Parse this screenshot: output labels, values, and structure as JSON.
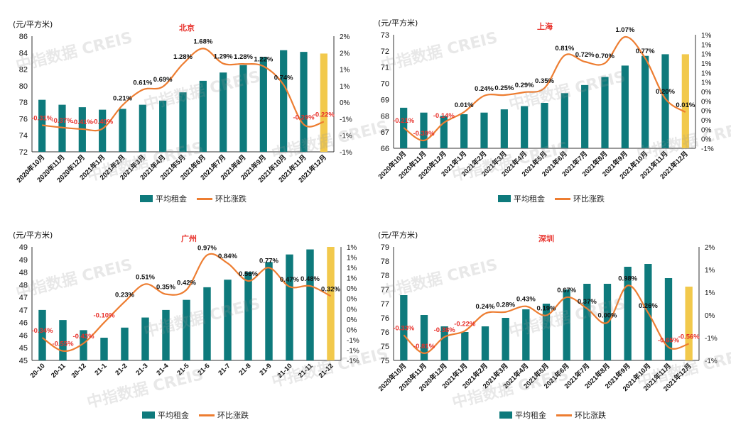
{
  "colors": {
    "bar": "#0e7a7c",
    "highlight": "#f2c94c",
    "line": "#ed7d31",
    "pct": "#e8312b",
    "title": "#e8312b"
  },
  "legend": {
    "bar": "平均租金",
    "line": "环比涨跌"
  },
  "watermark": "中指数据 CREIS",
  "chart_data": [
    {
      "type": "bar",
      "title": "北京",
      "ylabel": "(元/平方米)",
      "ylim": [
        72,
        86
      ],
      "yticks": [
        "72",
        "74",
        "76",
        "78",
        "80",
        "82",
        "84",
        "86"
      ],
      "y2ticks": [
        "-1%",
        "-1%",
        "-1%",
        "0%",
        "1%",
        "1%",
        "2%",
        "2%"
      ],
      "categories": [
        "2020年10月",
        "2020年11月",
        "2020年12月",
        "2021年1月",
        "2021年2月",
        "2021年3月",
        "2021年4月",
        "2021年5月",
        "2021年6月",
        "2021年7月",
        "2021年8月",
        "2021年9月",
        "2021年10月",
        "2021年11月",
        "2021年12月"
      ],
      "series": [
        {
          "name": "平均租金",
          "values": [
            78.3,
            77.7,
            77.4,
            77.1,
            77.2,
            77.7,
            78.2,
            79.2,
            80.6,
            81.6,
            82.5,
            83.5,
            84.3,
            84.1,
            83.9
          ]
        },
        {
          "name": "环比涨跌",
          "values": [
            -0.31,
            -0.37,
            -0.41,
            -0.4,
            0.21,
            0.61,
            0.69,
            1.28,
            1.68,
            1.29,
            1.28,
            1.22,
            0.74,
            -0.29,
            -0.22
          ]
        }
      ],
      "labels": [
        "-0.31%",
        "-0.37%",
        "-0.41%",
        "-0.40%",
        "0.21%",
        "0.61%",
        "0.69%",
        "1.28%",
        "1.68%",
        "1.29%",
        "1.28%",
        "1.22%",
        "0.74%",
        "-0.29%",
        "-0.22%"
      ]
    },
    {
      "type": "bar",
      "title": "上海",
      "ylabel": "(元/平方米)",
      "ylim": [
        66,
        73
      ],
      "yticks": [
        "66",
        "67",
        "68",
        "69",
        "70",
        "71",
        "72",
        "73"
      ],
      "y2ticks": [
        "-1%",
        "0%",
        "0%",
        "0%",
        "0%",
        "0%",
        "0%",
        "1%",
        "1%",
        "1%",
        "1%",
        "1%",
        "1%"
      ],
      "categories": [
        "2020年10月",
        "2020年11月",
        "2020年12月",
        "2021年1月",
        "2021年2月",
        "2021年3月",
        "2021年4月",
        "2021年5月",
        "2021年6月",
        "2021年7月",
        "2021年8月",
        "2021年9月",
        "2021年10月",
        "2021年11月",
        "2021年12月"
      ],
      "series": [
        {
          "name": "平均租金",
          "values": [
            68.5,
            68.2,
            68.0,
            68.1,
            68.2,
            68.4,
            68.6,
            68.8,
            69.4,
            69.9,
            70.4,
            71.1,
            71.7,
            71.8,
            71.8
          ]
        },
        {
          "name": "环比涨跌",
          "values": [
            -0.21,
            -0.39,
            -0.14,
            0.01,
            0.24,
            0.25,
            0.29,
            0.35,
            0.81,
            0.72,
            0.7,
            1.07,
            0.77,
            0.2,
            0.01
          ]
        }
      ],
      "labels": [
        "-0.21%",
        "-0.39%",
        "-0.14%",
        "0.01%",
        "0.24%",
        "0.25%",
        "0.29%",
        "0.35%",
        "0.81%",
        "0.72%",
        "0.70%",
        "1.07%",
        "0.77%",
        "0.20%",
        "0.01%"
      ]
    },
    {
      "type": "bar",
      "title": "广州",
      "ylabel": "(元/平方米)",
      "ylim": [
        45,
        49.5
      ],
      "yticks": [
        "45",
        "45",
        "46",
        "46",
        "47",
        "47",
        "48",
        "48",
        "49",
        "49"
      ],
      "y2ticks": [
        "-1%",
        "-1%",
        "-1%",
        "0%",
        "0%",
        "0%",
        "0%",
        "0%",
        "1%",
        "1%",
        "1%",
        "1%"
      ],
      "categories": [
        "20-10",
        "20-11",
        "20-12",
        "21-1",
        "21-2",
        "21-3",
        "21-4",
        "21-5",
        "21-6",
        "21-7",
        "21-8",
        "21-9",
        "21-10",
        "21-11",
        "21-12"
      ],
      "series": [
        {
          "name": "平均租金",
          "values": [
            47.0,
            46.6,
            46.2,
            45.9,
            46.3,
            46.7,
            47.0,
            47.4,
            47.9,
            48.2,
            48.5,
            48.9,
            49.2,
            49.4,
            49.5
          ]
        },
        {
          "name": "环比涨跌",
          "values": [
            -0.34,
            -0.55,
            -0.43,
            -0.1,
            0.23,
            0.51,
            0.35,
            0.42,
            0.97,
            0.84,
            0.56,
            0.77,
            0.47,
            0.48,
            0.32
          ]
        }
      ],
      "labels": [
        "-0.34%",
        "-0.55%",
        "-0.43%",
        "-0.10%",
        "0.23%",
        "0.51%",
        "0.35%",
        "0.42%",
        "0.97%",
        "0.84%",
        "0.56%",
        "0.77%",
        "0.47%",
        "0.48%",
        "0.32%"
      ]
    },
    {
      "type": "bar",
      "title": "深圳",
      "ylabel": "(元/平方米)",
      "ylim": [
        75,
        79
      ],
      "yticks": [
        "75",
        "75",
        "76",
        "76",
        "77",
        "77",
        "78",
        "78",
        "79"
      ],
      "y2ticks": [
        "-1%",
        "-1%",
        "0%",
        "1%",
        "1%",
        "2%"
      ],
      "categories": [
        "2020年10月",
        "2020年11月",
        "2020年12月",
        "2021年1月",
        "2021年2月",
        "2021年3月",
        "2021年4月",
        "2021年5月",
        "2021年6月",
        "2021年7月",
        "2021年8月",
        "2021年9月",
        "2021年10月",
        "2021年11月",
        "2021年12月"
      ],
      "series": [
        {
          "name": "平均租金",
          "values": [
            77.3,
            76.6,
            76.2,
            76.0,
            76.2,
            76.5,
            76.8,
            77.0,
            77.5,
            77.7,
            77.7,
            78.3,
            78.4,
            77.9,
            77.6
          ]
        },
        {
          "name": "环比涨跌",
          "values": [
            -0.33,
            -0.81,
            -0.38,
            -0.22,
            0.24,
            0.28,
            0.43,
            0.19,
            0.67,
            0.37,
            0.0,
            0.98,
            0.26,
            -0.65,
            -0.56
          ]
        }
      ],
      "labels": [
        "-0.33%",
        "-0.81%",
        "-0.38%",
        "-0.22%",
        "0.24%",
        "0.28%",
        "0.43%",
        "0.19%",
        "0.67%",
        "0.37%",
        "0.00%",
        "0.98%",
        "0.26%",
        "-0.65%",
        "-0.56%"
      ]
    }
  ]
}
